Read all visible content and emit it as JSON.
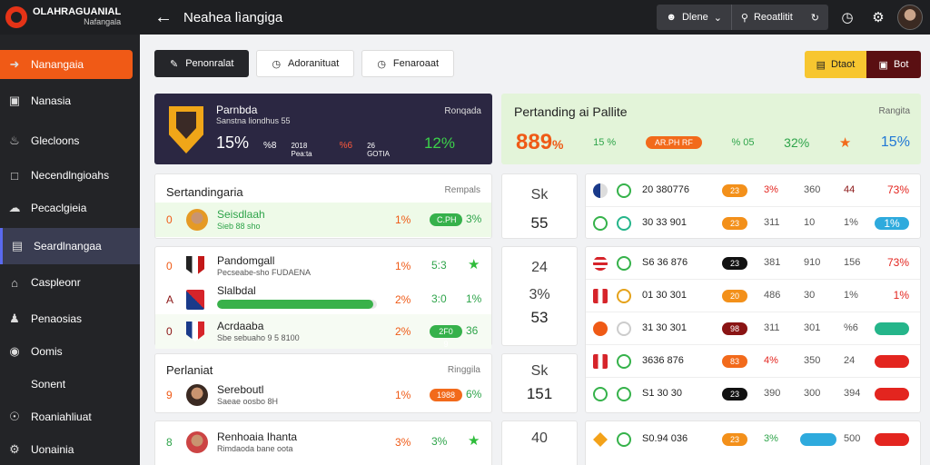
{
  "app": {
    "logo_line1": "OLAHRAGUANIAL",
    "logo_line2": "Nafangala",
    "page_title": "Neahea lìangiga"
  },
  "topbar": {
    "segment_left": "Dlene",
    "segment_mid": "Reoatlitit"
  },
  "sidebar": {
    "items": [
      {
        "label": "Nanangaia",
        "icon": "login-icon"
      },
      {
        "label": "Nanasia",
        "icon": "inbox-icon"
      },
      {
        "label": "Glecloons",
        "icon": "people-icon"
      },
      {
        "label": "Necendlngioahs",
        "icon": "window-icon"
      },
      {
        "label": "Pecaclgieia",
        "icon": "cloud-icon"
      },
      {
        "label": "Seardlnangaa",
        "icon": "layout-icon"
      },
      {
        "label": "Caspleonr",
        "icon": "house-icon"
      },
      {
        "label": "Penaosias",
        "icon": "person-icon"
      },
      {
        "label": "Oomis",
        "icon": "circle-icon"
      },
      {
        "label": "Sonent",
        "icon": "none"
      },
      {
        "label": "Roaniahliuat",
        "icon": "user-circle-icon"
      },
      {
        "label": "Uonainia",
        "icon": "settings-icon"
      }
    ]
  },
  "actions": {
    "primary": "Penonralat",
    "second": "Adoranituat",
    "third": "Fenaroaat",
    "yellow": "Dtaot",
    "maroon": "Bot"
  },
  "hero_dark": {
    "title": "Parnbda",
    "sub": "Sanstna liondhus 55",
    "right": "Ronqada",
    "s1": "15%",
    "s2": "%8",
    "s3": "2018\nPea:ta",
    "s4": "%6",
    "s5": "26\nGOTIA",
    "s6": "12%"
  },
  "hero_green": {
    "title": "Pertanding ai Pallite",
    "right": "Rangita",
    "big": "889",
    "big_suffix": "%",
    "s1": "15 %",
    "s2": "AR.PH RF",
    "s3": "% 05",
    "s4": "32%",
    "s5": "15%"
  },
  "panel1": {
    "head": "Sertandingaria",
    "tag": "Rempals",
    "rows": [
      {
        "rank": "0",
        "name": "Seisdlaah",
        "sub": "Sieb 88 sho",
        "pct": "1%",
        "pill": "C.PH",
        "val": "3%"
      }
    ]
  },
  "panel2": {
    "rows": [
      {
        "rank": "0",
        "name": "Pandomgall",
        "sub": "Pecseabe-sho FUDAENA",
        "pct": "1%",
        "val": "5:3"
      },
      {
        "rank": "A",
        "name": "Slalbdal",
        "sub": "",
        "pct": "2%",
        "val": "3:0",
        "val2": "1%",
        "progress": 0.98
      },
      {
        "rank": "0",
        "name": "Acrdaaba",
        "sub": "Sbe sebuaho 9 5 8100",
        "pct": "2%",
        "pill": "2F0 9",
        "val": "36"
      }
    ]
  },
  "panel3": {
    "head": "Perlaniat",
    "tag": "Ringgila",
    "rows": [
      {
        "rank": "9",
        "name": "Sereboutl",
        "sub": "Saeae oosbo 8H",
        "pct": "1%",
        "pill": "1988",
        "val": "6%"
      }
    ]
  },
  "panel4": {
    "rows": [
      {
        "rank": "8",
        "name": "Renhoaia Ihanta",
        "sub": "Rimdaoda bane oota",
        "pct": "3%",
        "val": "3%"
      }
    ]
  },
  "mid": [
    {
      "t": "Sk",
      "b": "55"
    },
    {
      "t": "24",
      "m": "3%",
      "b": "53"
    },
    {
      "t": "Sk",
      "b": "151"
    },
    {
      "t": "40",
      "b": ""
    }
  ],
  "table1": [
    {
      "code": "20 380776",
      "pill": "23",
      "a": "3%",
      "b": "360",
      "c": "44",
      "d": "73%"
    },
    {
      "code": "30 33 901",
      "pill": "23",
      "a": "311",
      "b": "10",
      "c": "1%",
      "d": "1%"
    }
  ],
  "table2": [
    {
      "code": "S6 36 876",
      "pill": "23",
      "a": "381",
      "b": "910",
      "c": "156",
      "d": "73%"
    },
    {
      "code": "01 30 301",
      "pill": "20",
      "a": "486",
      "b": "30",
      "c": "1%",
      "d": "1%"
    },
    {
      "code": "31 30 301",
      "pill": "98",
      "a": "311",
      "b": "301",
      "c": "%6",
      "d": ""
    },
    {
      "code": "3636 876",
      "pill": "83",
      "a": "4%",
      "b": "350",
      "c": "24",
      "d": ""
    },
    {
      "code": "S1 30 30",
      "pill": "23",
      "a": "390",
      "b": "300",
      "c": "394",
      "d": ""
    }
  ],
  "table3": [
    {
      "code": "S0.94 036",
      "pill": "23",
      "a": "3%",
      "b": "",
      "c": "500",
      "d": ""
    }
  ],
  "colors": {
    "accent": "#f05a16",
    "dark": "#232427",
    "green": "#39b14a"
  }
}
